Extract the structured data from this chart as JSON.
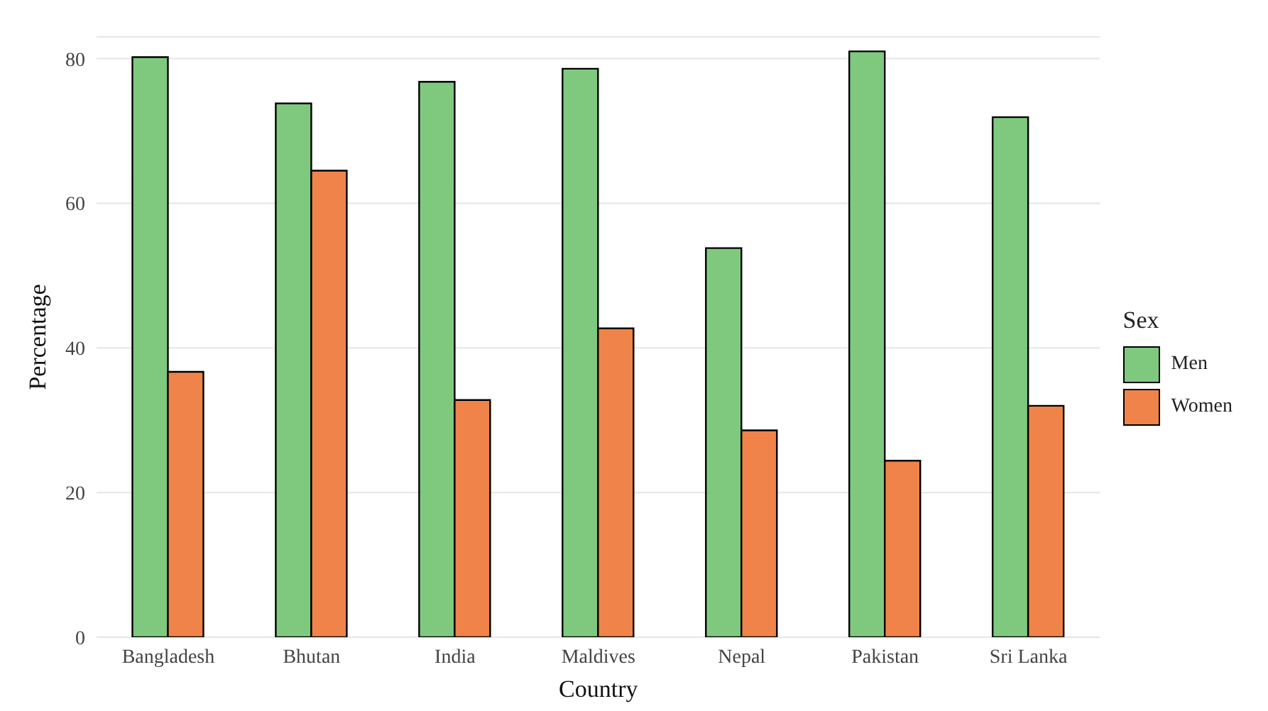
{
  "chart_data": {
    "type": "bar",
    "xlabel": "Country",
    "ylabel": "Percentage",
    "legend_title": "Sex",
    "categories": [
      "Bangladesh",
      "Bhutan",
      "India",
      "Maldives",
      "Nepal",
      "Pakistan",
      "Sri Lanka"
    ],
    "series": [
      {
        "name": "Men",
        "color": "#7fc97f",
        "values": [
          80.2,
          73.8,
          76.8,
          78.6,
          53.8,
          81.0,
          71.9
        ]
      },
      {
        "name": "Women",
        "color": "#f0834a",
        "values": [
          36.7,
          64.5,
          32.8,
          42.7,
          28.6,
          24.4,
          32.0
        ]
      }
    ],
    "ylim": [
      0,
      83
    ],
    "yticks": [
      0,
      20,
      40,
      60,
      80
    ],
    "grid": true,
    "legend": "right"
  }
}
